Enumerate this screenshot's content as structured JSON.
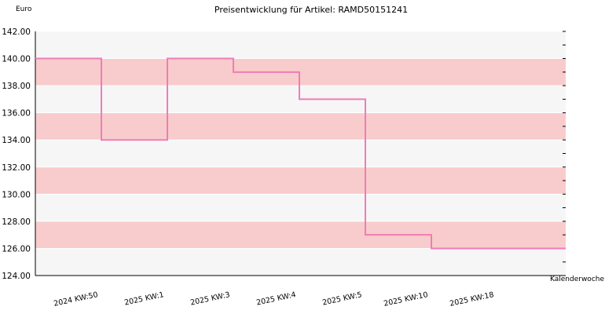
{
  "chart_data": {
    "type": "line",
    "title": "Preisentwicklung für Artikel: RAMD50151241",
    "ylabel": "Euro",
    "xlabel": "Kalenderwoche",
    "ylim": [
      124,
      142
    ],
    "y_ticks": [
      "124.00",
      "126.00",
      "128.00",
      "130.00",
      "132.00",
      "134.00",
      "136.00",
      "138.00",
      "140.00",
      "142.00"
    ],
    "categories": [
      "2024 KW:50",
      "2025 KW:1",
      "2025 KW:3",
      "2025 KW:4",
      "2025 KW:5",
      "2025 KW:10",
      "2025 KW:18"
    ],
    "series": [
      {
        "values": [
          140,
          134,
          140,
          139,
          137,
          127,
          126
        ]
      }
    ],
    "step": true,
    "grid": true,
    "colors": {
      "line": "#f07cb8",
      "band_pink": "#f8cccc",
      "band_light": "#f6f6f6",
      "gridline": "#ffffff"
    }
  }
}
